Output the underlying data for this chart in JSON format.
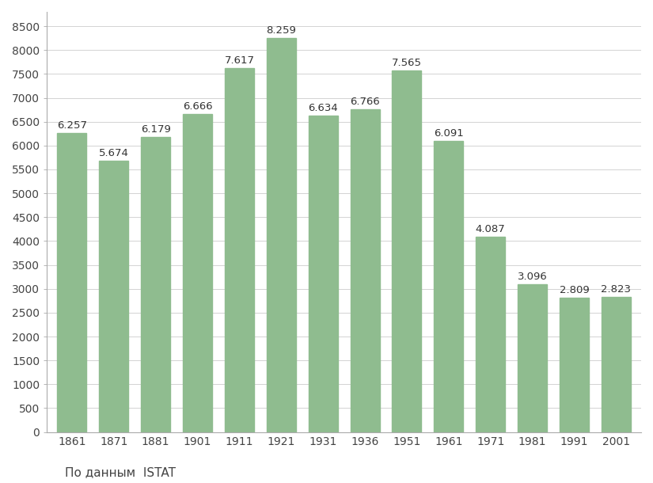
{
  "categories": [
    "1861",
    "1871",
    "1881",
    "1901",
    "1911",
    "1921",
    "1931",
    "1936",
    "1951",
    "1961",
    "1971",
    "1981",
    "1991",
    "2001"
  ],
  "values": [
    6257,
    5674,
    6179,
    6666,
    7617,
    8259,
    6634,
    6766,
    7565,
    6091,
    4087,
    3096,
    2809,
    2823
  ],
  "labels": [
    "6.257",
    "5.674",
    "6.179",
    "6.666",
    "7.617",
    "8.259",
    "6.634",
    "6.766",
    "7.565",
    "6.091",
    "4.087",
    "3.096",
    "2.809",
    "2.823"
  ],
  "bar_color": "#8fbc8f",
  "background_color": "#ffffff",
  "grid_color": "#cccccc",
  "ylim": [
    0,
    8800
  ],
  "yticks": [
    0,
    500,
    1000,
    1500,
    2000,
    2500,
    3000,
    3500,
    4000,
    4500,
    5000,
    5500,
    6000,
    6500,
    7000,
    7500,
    8000,
    8500
  ],
  "caption": "По данным  ISTAT",
  "caption_fontsize": 11,
  "tick_fontsize": 10,
  "label_fontsize": 9.5,
  "bar_width": 0.7,
  "figsize": [
    8.25,
    6.1
  ],
  "dpi": 100
}
